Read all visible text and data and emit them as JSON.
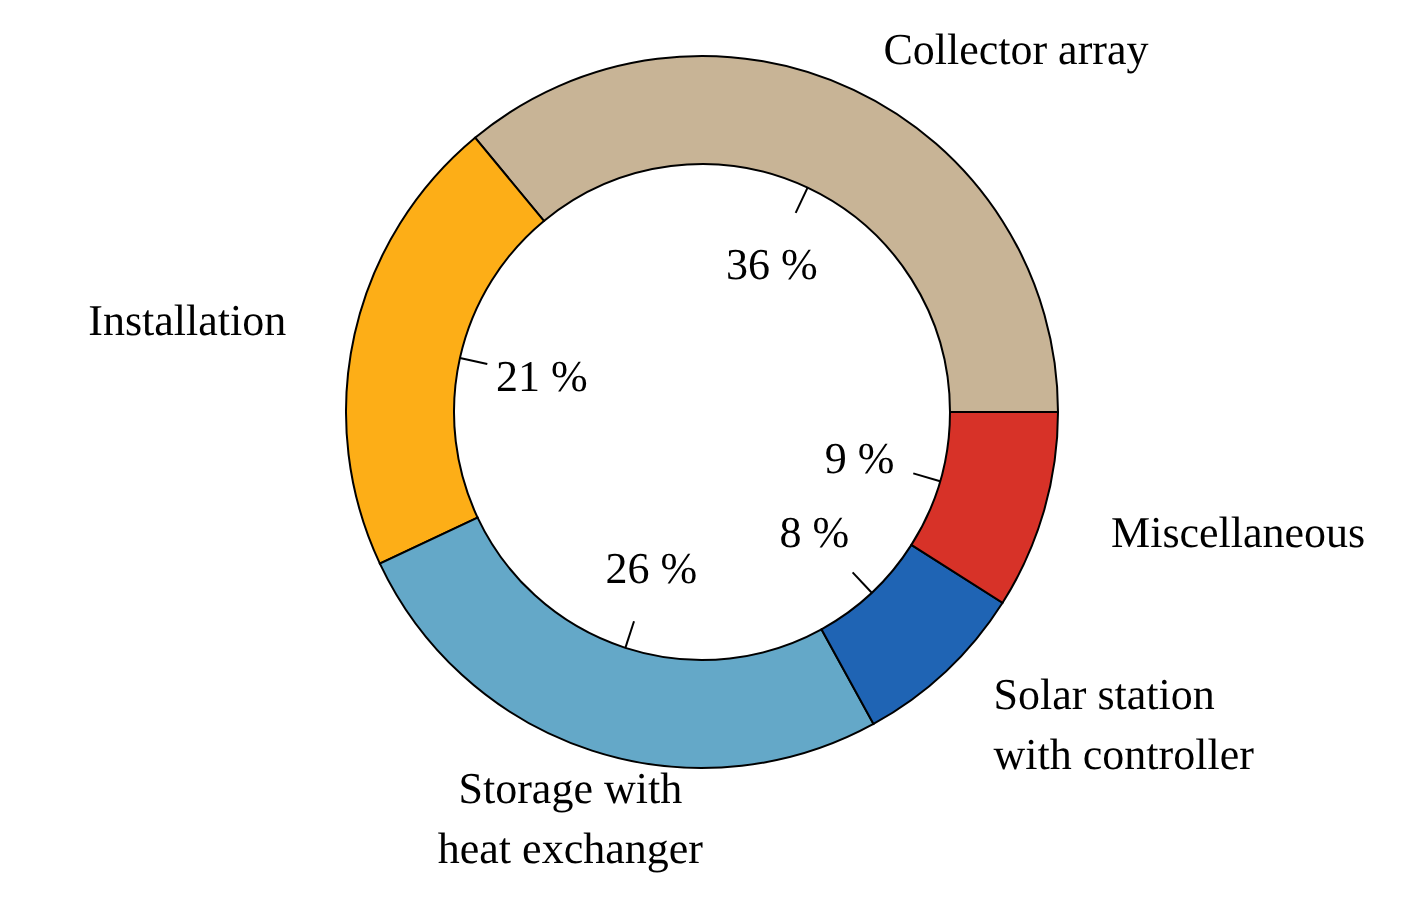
{
  "chart_data": {
    "type": "donut",
    "categories": [
      "Collector array",
      "Installation",
      "Storage with heat exchanger",
      "Solar station with controller",
      "Miscellaneous"
    ],
    "values": [
      36,
      21,
      26,
      8,
      9
    ],
    "value_labels": [
      "36 %",
      "21 %",
      "26 %",
      "8 %",
      "9 %"
    ],
    "colors": [
      "#c8b496",
      "#fdae17",
      "#64a8c8",
      "#1f64b4",
      "#d73228"
    ]
  }
}
